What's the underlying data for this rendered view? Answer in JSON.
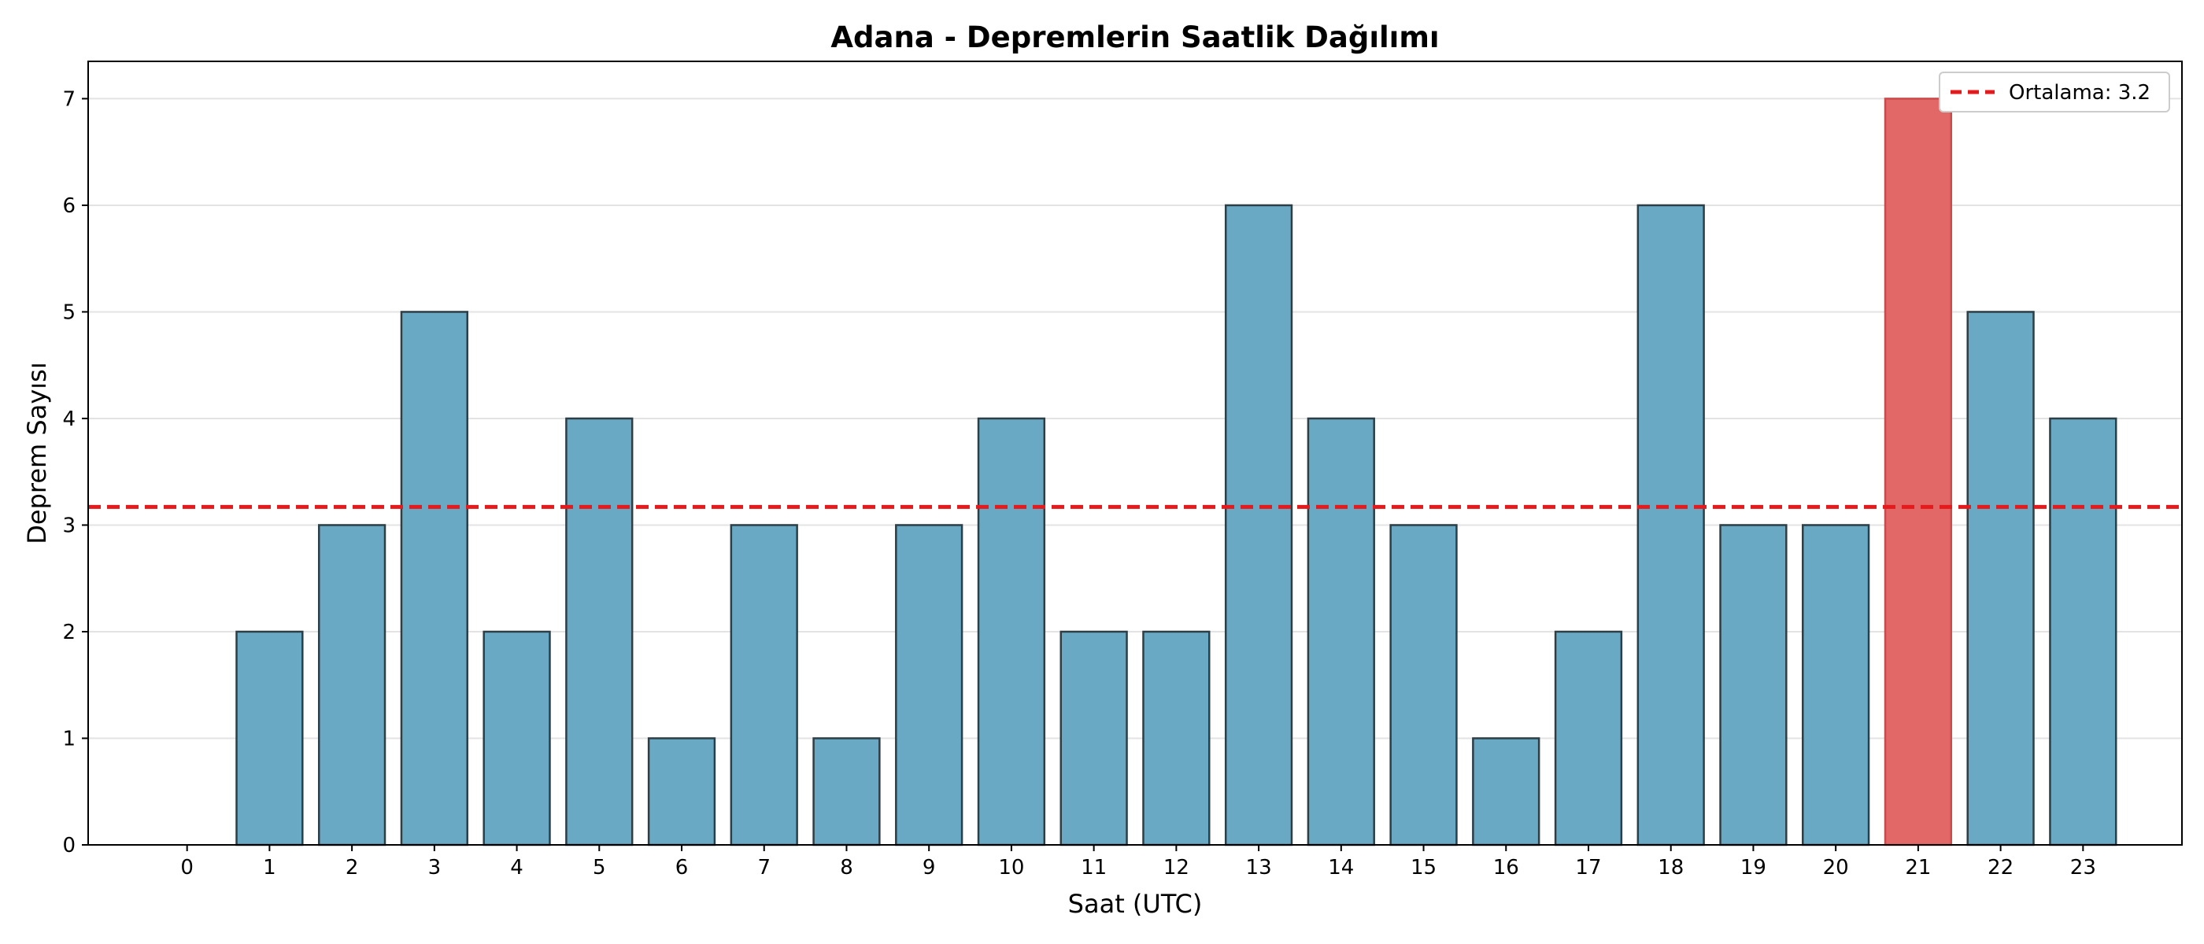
{
  "chart_data": {
    "type": "bar",
    "title": "Adana - Depremlerin Saatlik Dağılımı",
    "xlabel": "Saat (UTC)",
    "ylabel": "Deprem Sayısı",
    "categories": [
      "0",
      "1",
      "2",
      "3",
      "4",
      "5",
      "6",
      "7",
      "8",
      "9",
      "10",
      "11",
      "12",
      "13",
      "14",
      "15",
      "16",
      "17",
      "18",
      "19",
      "20",
      "21",
      "22",
      "23"
    ],
    "values": [
      0,
      2,
      3,
      5,
      2,
      4,
      1,
      3,
      1,
      3,
      4,
      2,
      2,
      6,
      4,
      3,
      1,
      2,
      6,
      3,
      3,
      7,
      5,
      4
    ],
    "ylim": [
      0,
      7.35
    ],
    "yticks": [
      0,
      1,
      2,
      3,
      4,
      5,
      6,
      7
    ],
    "grid": "horizontal",
    "highlight_category": "21",
    "colors": {
      "bar": "#6aa9c4",
      "highlight": "#e26767",
      "edge": "#2c3e46",
      "mean_line": "#e41a1c"
    },
    "mean": 3.17,
    "legend": {
      "position": "top-right",
      "entries": [
        {
          "label": "Ortalama: 3.2",
          "style": "dashed-red-line"
        }
      ]
    }
  }
}
